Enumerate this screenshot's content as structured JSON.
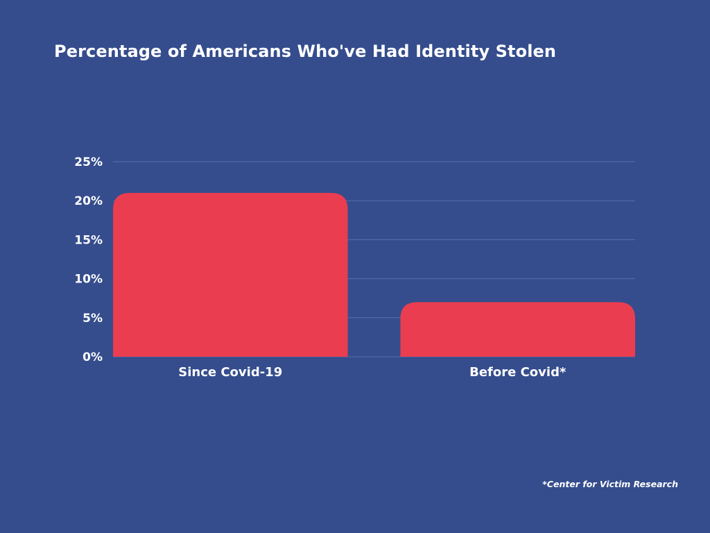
{
  "chart_data": {
    "type": "bar",
    "title": "Percentage of Americans Who've Had Identity Stolen",
    "categories": [
      "Since Covid-19",
      "Before Covid*"
    ],
    "values": [
      21,
      7
    ],
    "ylim": [
      0,
      25
    ],
    "yticks": [
      0,
      5,
      10,
      15,
      20,
      25
    ],
    "ytick_labels": [
      "0%",
      "5%",
      "10%",
      "15%",
      "20%",
      "25%"
    ],
    "grid": true,
    "xlabel": "",
    "ylabel": ""
  },
  "footnote": "*Center for Victim Research",
  "colors": {
    "background": "#354d8d",
    "bar": "#eb3d50",
    "grid": "#5b6fa8",
    "text": "#ffffff"
  }
}
